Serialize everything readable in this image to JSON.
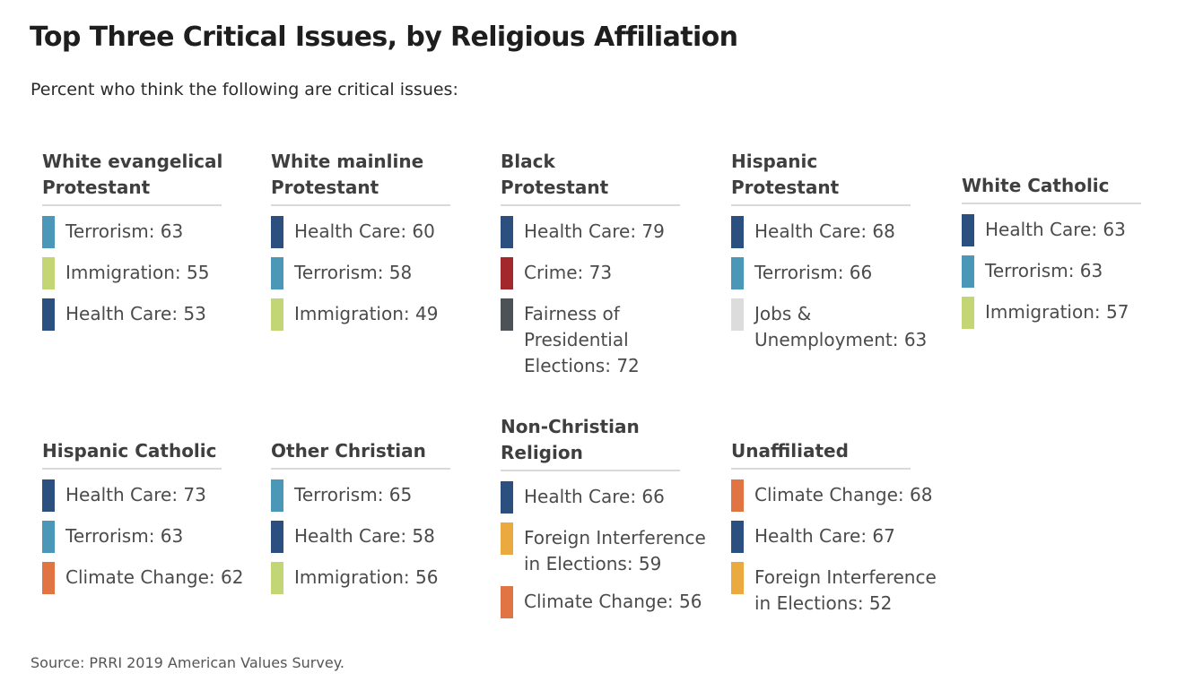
{
  "title": "Top Three Critical Issues, by Religious Affiliation",
  "subtitle": "Percent who think the following are critical issues:",
  "source": "Source: PRRI 2019 American Values Survey.",
  "colors": {
    "Health Care": "#2b4f7e",
    "Terrorism": "#4a97b7",
    "Immigration": "#c3d675",
    "Crime": "#a3282b",
    "Fairness of Presidential Elections": "#4c5256",
    "Jobs & Unemployment": "#dcdcdc",
    "Climate Change": "#e07543",
    "Foreign Interference in Elections": "#eaaa3f"
  },
  "chart_data": {
    "type": "table",
    "title": "Top Three Critical Issues, by Religious Affiliation",
    "subtitle": "Percent who think the following are critical issues:",
    "groups": [
      {
        "name_lines": [
          "White evangelical",
          "Protestant"
        ],
        "items": [
          {
            "issue": "Terrorism",
            "value": 63,
            "lines": [
              "Terrorism: 63"
            ]
          },
          {
            "issue": "Immigration",
            "value": 55,
            "lines": [
              "Immigration: 55"
            ]
          },
          {
            "issue": "Health Care",
            "value": 53,
            "lines": [
              "Health Care: 53"
            ]
          }
        ]
      },
      {
        "name_lines": [
          "White mainline",
          "Protestant"
        ],
        "items": [
          {
            "issue": "Health Care",
            "value": 60,
            "lines": [
              "Health Care: 60"
            ]
          },
          {
            "issue": "Terrorism",
            "value": 58,
            "lines": [
              "Terrorism: 58"
            ]
          },
          {
            "issue": "Immigration",
            "value": 49,
            "lines": [
              "Immigration: 49"
            ]
          }
        ]
      },
      {
        "name_lines": [
          "Black",
          "Protestant"
        ],
        "items": [
          {
            "issue": "Health Care",
            "value": 79,
            "lines": [
              "Health Care: 79"
            ]
          },
          {
            "issue": "Crime",
            "value": 73,
            "lines": [
              "Crime: 73"
            ]
          },
          {
            "issue": "Fairness of Presidential Elections",
            "value": 72,
            "lines": [
              "Fairness of",
              "Presidential",
              "Elections: 72"
            ]
          }
        ]
      },
      {
        "name_lines": [
          "Hispanic",
          "Protestant"
        ],
        "items": [
          {
            "issue": "Health Care",
            "value": 68,
            "lines": [
              "Health Care: 68"
            ]
          },
          {
            "issue": "Terrorism",
            "value": 66,
            "lines": [
              "Terrorism: 66"
            ]
          },
          {
            "issue": "Jobs & Unemployment",
            "value": 63,
            "lines": [
              "Jobs &",
              "Unemployment: 63"
            ]
          }
        ]
      },
      {
        "name_lines": [
          "White Catholic"
        ],
        "items": [
          {
            "issue": "Health Care",
            "value": 63,
            "lines": [
              "Health Care: 63"
            ]
          },
          {
            "issue": "Terrorism",
            "value": 63,
            "lines": [
              "Terrorism: 63"
            ]
          },
          {
            "issue": "Immigration",
            "value": 57,
            "lines": [
              "Immigration: 57"
            ]
          }
        ]
      },
      {
        "name_lines": [
          "Hispanic Catholic"
        ],
        "items": [
          {
            "issue": "Health Care",
            "value": 73,
            "lines": [
              "Health Care: 73"
            ]
          },
          {
            "issue": "Terrorism",
            "value": 63,
            "lines": [
              "Terrorism: 63"
            ]
          },
          {
            "issue": "Climate Change",
            "value": 62,
            "lines": [
              "Climate Change: 62"
            ]
          }
        ]
      },
      {
        "name_lines": [
          "Other Christian"
        ],
        "items": [
          {
            "issue": "Terrorism",
            "value": 65,
            "lines": [
              "Terrorism: 65"
            ]
          },
          {
            "issue": "Health Care",
            "value": 58,
            "lines": [
              "Health Care: 58"
            ]
          },
          {
            "issue": "Immigration",
            "value": 56,
            "lines": [
              "Immigration: 56"
            ]
          }
        ]
      },
      {
        "name_lines": [
          "Non-Christian",
          "Religion"
        ],
        "items": [
          {
            "issue": "Health Care",
            "value": 66,
            "lines": [
              "Health Care: 66"
            ]
          },
          {
            "issue": "Foreign Interference in Elections",
            "value": 59,
            "lines": [
              "Foreign Interference",
              "in Elections: 59"
            ]
          },
          {
            "issue": "Climate Change",
            "value": 56,
            "lines": [
              "Climate Change: 56"
            ]
          }
        ]
      },
      {
        "name_lines": [
          "Unaffiliated"
        ],
        "items": [
          {
            "issue": "Climate Change",
            "value": 68,
            "lines": [
              "Climate Change: 68"
            ]
          },
          {
            "issue": "Health Care",
            "value": 67,
            "lines": [
              "Health Care: 67"
            ]
          },
          {
            "issue": "Foreign Interference in Elections",
            "value": 52,
            "lines": [
              "Foreign Interference",
              "in Elections: 52"
            ]
          }
        ]
      }
    ]
  }
}
